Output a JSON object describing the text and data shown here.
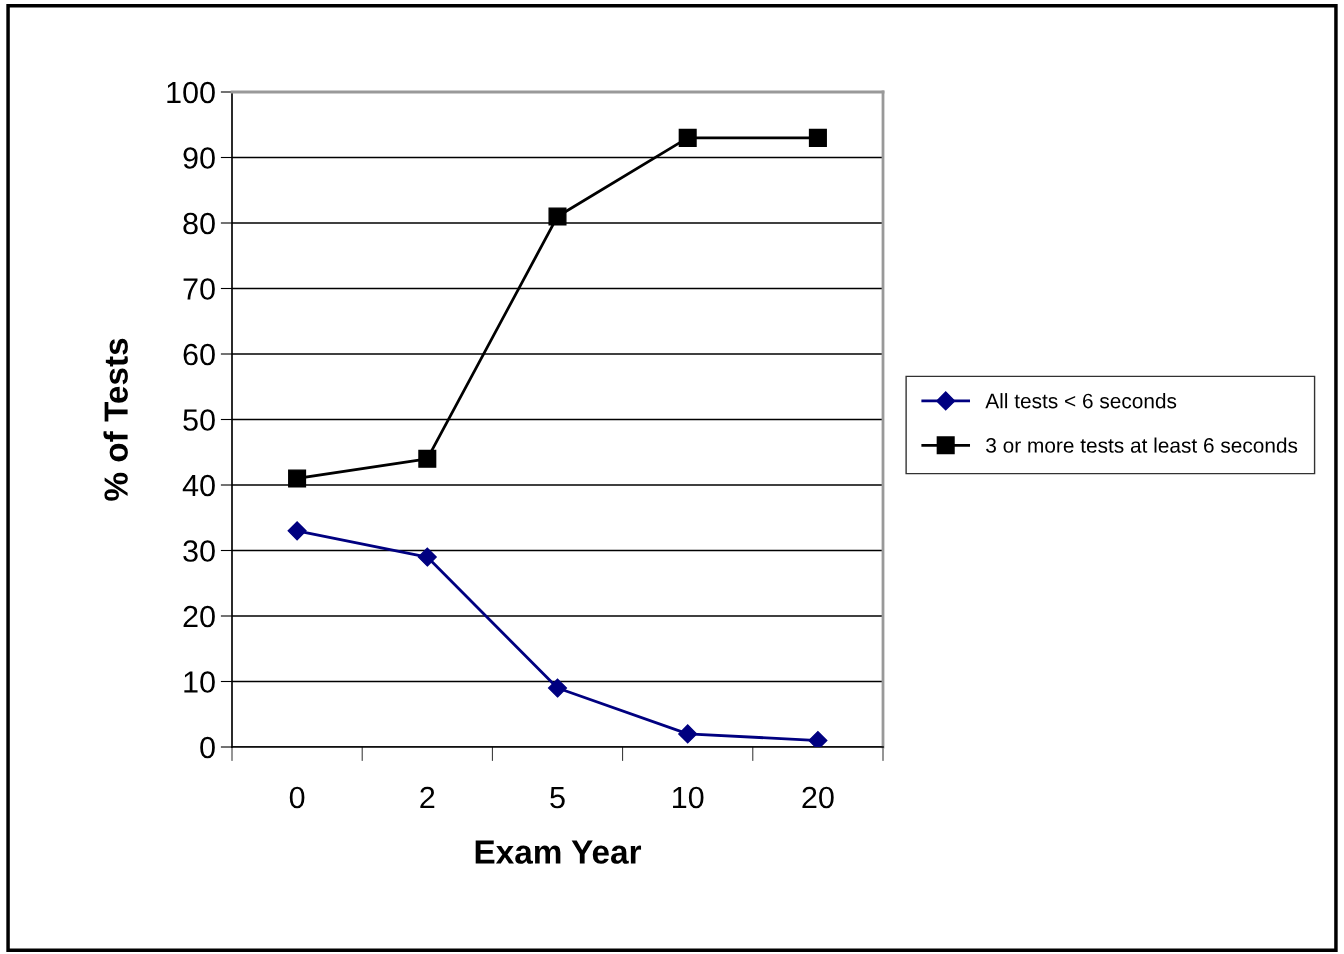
{
  "chart_data": {
    "type": "line",
    "xlabel": "Exam Year",
    "ylabel": "% of Tests",
    "categories": [
      "0",
      "2",
      "5",
      "10",
      "20"
    ],
    "series": [
      {
        "name": "All tests < 6 seconds",
        "color": "#000080",
        "marker": "diamond",
        "values": [
          33,
          29,
          9,
          2,
          1
        ]
      },
      {
        "name": "3 or more tests at least 6 seconds",
        "color": "#000000",
        "marker": "square",
        "values": [
          41,
          44,
          81,
          93,
          93
        ]
      }
    ],
    "ylim": [
      0,
      100
    ],
    "yticks": [
      0,
      10,
      20,
      30,
      40,
      50,
      60,
      70,
      80,
      90,
      100
    ],
    "grid": "y",
    "legend": "right"
  }
}
